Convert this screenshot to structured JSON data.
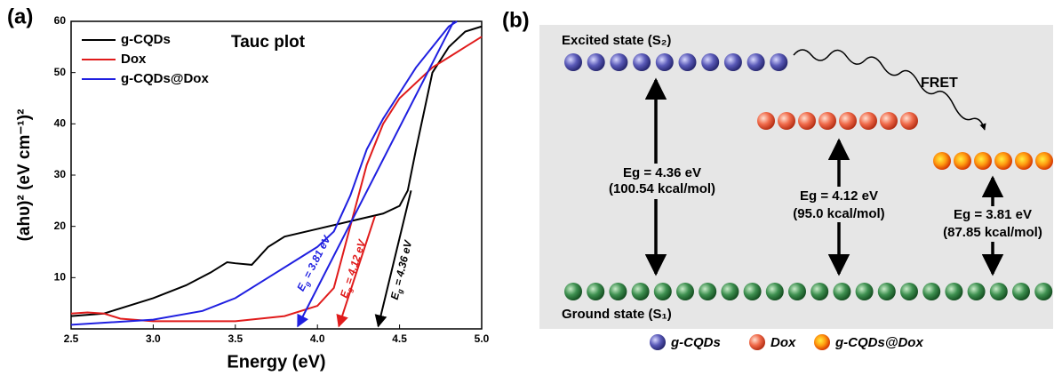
{
  "chart_data": {
    "type": "line",
    "panel_label": "(a)",
    "title": "Tauc plot",
    "x_label": "Energy (eV)",
    "y_label": "(ahυ)² (eV cm⁻¹)²",
    "xlim": [
      2.5,
      5.0
    ],
    "ylim": [
      0,
      60
    ],
    "xticks": [
      2.5,
      {
        "value": 3,
        "label": "3.0"
      },
      3.5,
      {
        "value": 4,
        "label": "4.0"
      },
      4.5,
      {
        "value": 5,
        "label": "5.0"
      }
    ],
    "yticks": [
      10,
      20,
      30,
      40,
      50,
      60
    ],
    "legend": "top-left",
    "series": [
      {
        "name": "g-CQDs",
        "color": "#000000",
        "x": [
          2.5,
          2.7,
          2.9,
          3.0,
          3.2,
          3.35,
          3.45,
          3.5,
          3.6,
          3.7,
          3.8,
          4.0,
          4.2,
          4.4,
          4.5,
          4.55,
          4.6,
          4.7,
          4.8,
          4.9,
          5.0
        ],
        "values": [
          2.5,
          3,
          5,
          6,
          8.5,
          11,
          13,
          12.8,
          12.5,
          16,
          18,
          19.5,
          21,
          22.5,
          24,
          27,
          35,
          50,
          55,
          58,
          59
        ]
      },
      {
        "name": "Dox",
        "color": "#e01b1b",
        "x": [
          2.5,
          2.6,
          2.7,
          2.8,
          3.0,
          3.5,
          3.8,
          4.0,
          4.1,
          4.2,
          4.3,
          4.4,
          4.5,
          4.7,
          4.9,
          5.0
        ],
        "values": [
          3,
          3.2,
          3,
          2,
          1.5,
          1.5,
          2.5,
          4.5,
          8,
          20,
          32,
          40,
          45,
          51,
          55,
          57
        ]
      },
      {
        "name": "g-CQDs@Dox",
        "color": "#1f1fe0",
        "x": [
          2.5,
          3.0,
          3.3,
          3.5,
          3.7,
          3.9,
          4.0,
          4.1,
          4.2,
          4.3,
          4.4,
          4.5,
          4.6,
          4.7,
          4.8,
          4.85
        ],
        "values": [
          0.8,
          1.8,
          3.5,
          6,
          10,
          14,
          16,
          19,
          26,
          35,
          41,
          46,
          51,
          55,
          59,
          60
        ]
      }
    ],
    "annotations": [
      {
        "symbol": "E",
        "subscript": "g",
        "text": " = 3.81 eV",
        "color": "#1f1fe0",
        "x": [
          4.83,
          3.88
        ],
        "y": [
          60,
          0.5
        ]
      },
      {
        "symbol": "E",
        "subscript": "g",
        "text": " = 4.12 eV",
        "color": "#e01b1b",
        "x": [
          4.35,
          4.13
        ],
        "y": [
          22,
          0.5
        ]
      },
      {
        "symbol": "E",
        "subscript": "g",
        "text": " = 4.36 eV",
        "color": "#000000",
        "x": [
          4.57,
          4.37
        ],
        "y": [
          27,
          0.5
        ]
      }
    ]
  },
  "diagram": {
    "panel_label": "(b)",
    "excited_state": "Excited state (S₂)",
    "ground_state": "Ground state (S₁)",
    "fret": "FRET",
    "gaps": [
      {
        "energy": "Eg = 4.36 eV",
        "kcal": "(100.54 kcal/mol)"
      },
      {
        "energy": "Eg = 4.12 eV",
        "kcal": "(95.0 kcal/mol)"
      },
      {
        "energy": "Eg = 3.81 eV",
        "kcal": "(87.85 kcal/mol)"
      }
    ],
    "legend": [
      "g-CQDs",
      "Dox",
      "g-CQDs@Dox"
    ]
  }
}
